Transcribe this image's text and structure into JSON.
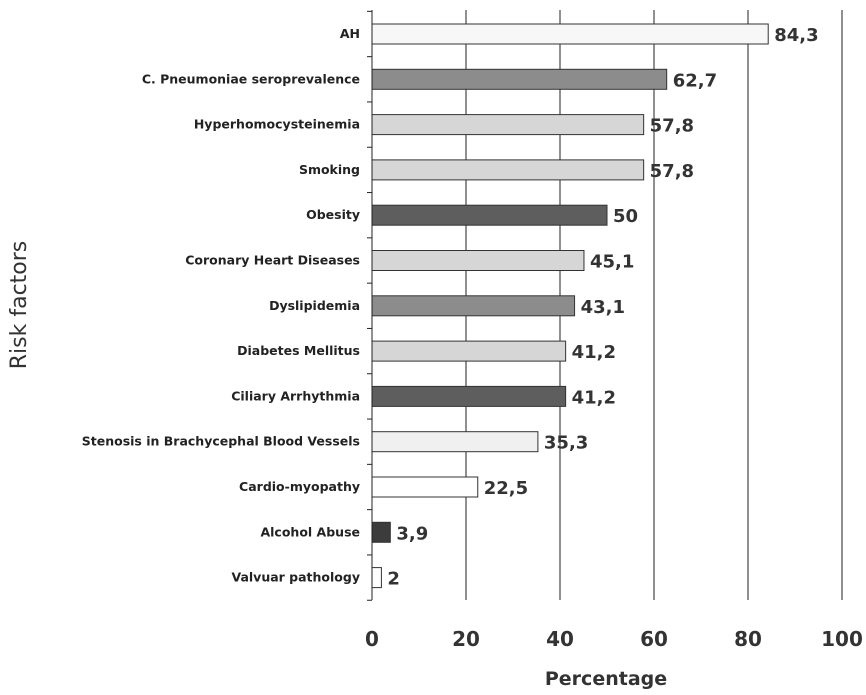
{
  "chart_data": {
    "type": "bar",
    "orientation": "horizontal",
    "xlabel": "Percentage",
    "ylabel": "Risk factors",
    "xlim": [
      0,
      100
    ],
    "xticks": [
      0,
      20,
      40,
      60,
      80,
      100
    ],
    "grid": "vertical",
    "categories": [
      "AH",
      "C. Pneumoniae seroprevalence",
      "Hyperhomocysteinemia",
      "Smoking",
      "Obesity",
      "Coronary Heart Diseases",
      "Dyslipidemia",
      "Diabetes Mellitus",
      "Ciliary Arrhythmia",
      "Stenosis in Brachycephal Blood Vessels",
      "Cardio-myopathy",
      "Alcohol Abuse",
      "Valvuar pathology"
    ],
    "values": [
      84.3,
      62.7,
      57.8,
      57.8,
      50,
      45.1,
      43.1,
      41.2,
      41.2,
      35.3,
      22.5,
      3.9,
      2
    ],
    "value_labels": [
      "84,3",
      "62,7",
      "57,8",
      "57,8",
      "50",
      "45,1",
      "43,1",
      "41,2",
      "41,2",
      "35,3",
      "22,5",
      "3,9",
      "2"
    ],
    "colors": [
      "#f7f7f7",
      "#8c8c8c",
      "#d6d6d6",
      "#d6d6d6",
      "#5e5e5e",
      "#d6d6d6",
      "#8c8c8c",
      "#d6d6d6",
      "#5e5e5e",
      "#f0f0f0",
      "#ffffff",
      "#3c3c3c",
      "#ffffff"
    ]
  }
}
